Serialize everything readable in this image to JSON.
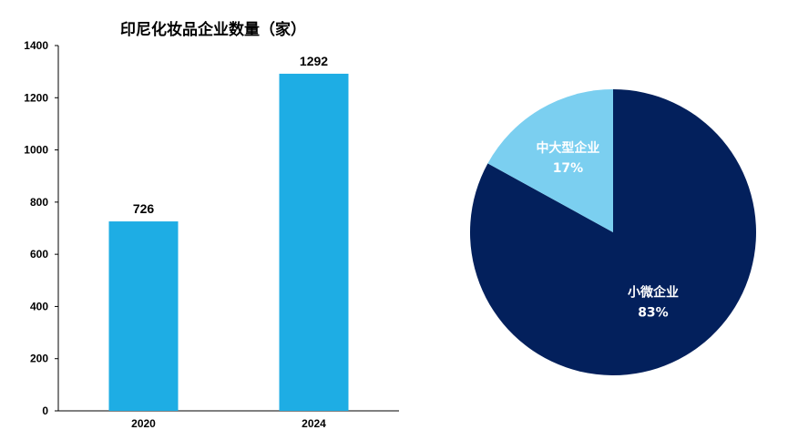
{
  "chart_data": [
    {
      "type": "bar",
      "title": "印尼化妆品企业数量（家）",
      "categories": [
        "2020",
        "2024"
      ],
      "values": [
        726,
        1292
      ],
      "data_labels": [
        "726",
        "1292"
      ],
      "ylim": [
        0,
        1400
      ],
      "yticks": [
        0,
        200,
        400,
        600,
        800,
        1000,
        1200,
        1400
      ],
      "ytick_labels": [
        "0",
        "200",
        "400",
        "600",
        "800",
        "1000",
        "1200",
        "1400"
      ],
      "grid": false,
      "bar_color": "#1EADE4"
    },
    {
      "type": "pie",
      "slices": [
        {
          "name": "小微企业",
          "value": 83,
          "value_label": "83%",
          "color": "#03205C"
        },
        {
          "name": "中大型企业",
          "value": 17,
          "value_label": "17%",
          "color": "#7BCFF0"
        }
      ],
      "start_angle_deg": 0,
      "direction": "clockwise",
      "legend": "none"
    }
  ]
}
